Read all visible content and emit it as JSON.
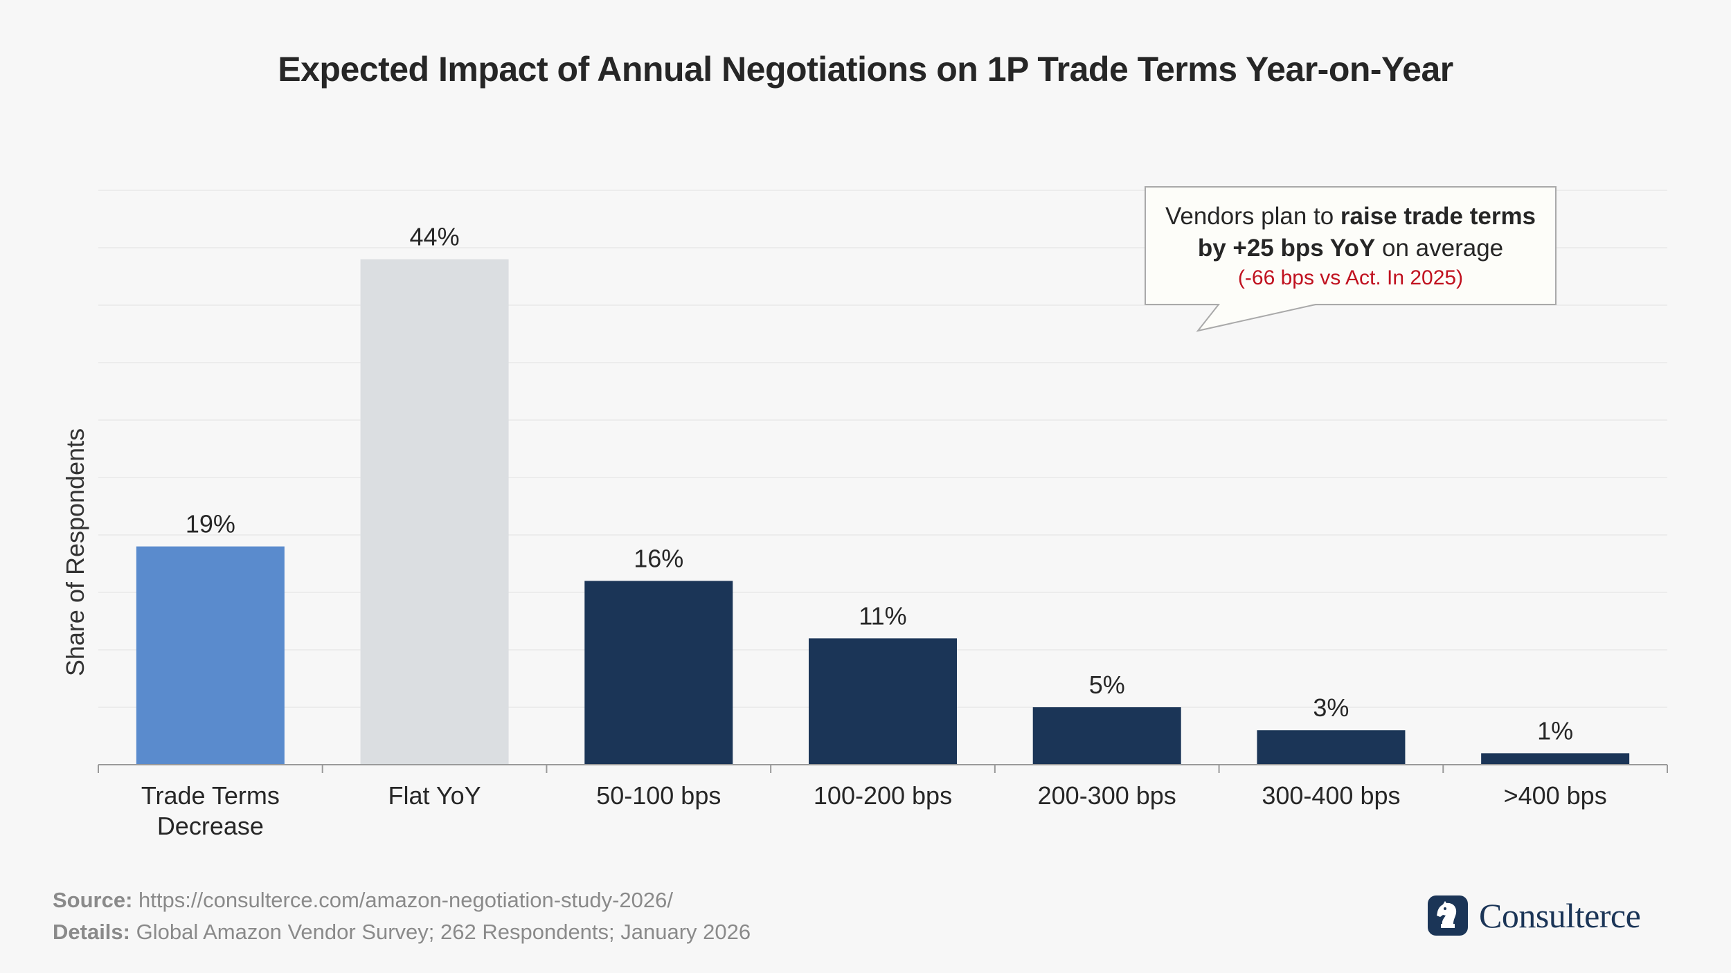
{
  "chart_data": {
    "type": "bar",
    "title": "Expected Impact of Annual Negotiations on 1P Trade Terms Year-on-Year",
    "xlabel": "",
    "ylabel": "Share of Respondents",
    "categories": [
      [
        "Trade Terms",
        "Decrease"
      ],
      [
        "Flat YoY"
      ],
      [
        "50-100 bps"
      ],
      [
        "100-200 bps"
      ],
      [
        "200-300 bps"
      ],
      [
        "300-400 bps"
      ],
      [
        ">400 bps"
      ]
    ],
    "values": [
      19,
      44,
      16,
      11,
      5,
      3,
      1
    ],
    "value_labels": [
      "19%",
      "44%",
      "16%",
      "11%",
      "5%",
      "3%",
      "1%"
    ],
    "bar_colors": [
      "#5a8bcd",
      "#dbdee1",
      "#1b3557",
      "#1b3557",
      "#1b3557",
      "#1b3557",
      "#1b3557"
    ],
    "ylim": [
      0,
      50
    ],
    "grid": true,
    "legend": "none"
  },
  "callout": {
    "line1_pre": "Vendors plan to ",
    "line1_bold": "raise trade terms",
    "line2_bold": "by +25 bps YoY",
    "line2_post": " on average",
    "line3": "(-66 bps vs Act. In 2025)"
  },
  "footer": {
    "source_label": "Source:",
    "source_text": " https://consulterce.com/amazon-negotiation-study-2026/",
    "details_label": "Details:",
    "details_text": " Global Amazon Vendor Survey; 262 Respondents; January 2026"
  },
  "brand": {
    "name": "Consulterce",
    "icon": "knight-chess-icon"
  },
  "colors": {
    "background": "#f7f7f7",
    "accent_red": "#c0111f",
    "navy": "#1b3557"
  }
}
